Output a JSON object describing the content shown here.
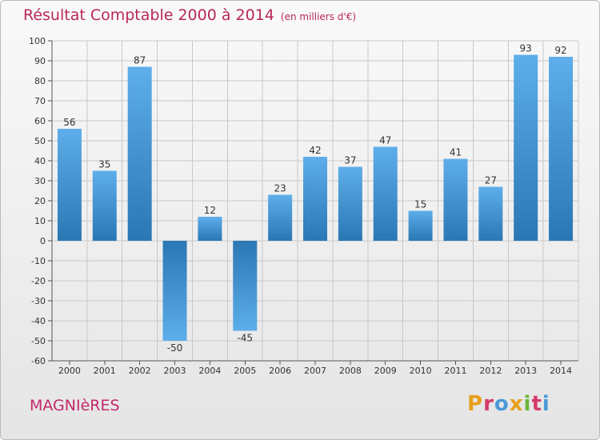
{
  "header": {
    "title": "Résultat Comptable 2000 à 2014",
    "subtitle": "(en milliers d'€)"
  },
  "footer": {
    "town": "MAGNIèRES",
    "brand_letters": [
      "P",
      "r",
      "o",
      "x",
      "i",
      "t",
      "i"
    ],
    "brand_colors": [
      "#e8a01c",
      "#d43a6a",
      "#4a9ad8",
      "#e8a01c",
      "#6ab63c",
      "#d43a6a",
      "#4a9ad8"
    ]
  },
  "chart_data": {
    "type": "bar",
    "title": "Résultat Comptable 2000 à 2014",
    "subtitle": "(en milliers d'€)",
    "xlabel": "",
    "ylabel": "",
    "categories": [
      "2000",
      "2001",
      "2002",
      "2003",
      "2004",
      "2005",
      "2006",
      "2007",
      "2008",
      "2009",
      "2010",
      "2011",
      "2012",
      "2013",
      "2014"
    ],
    "values": [
      56,
      35,
      87,
      -50,
      12,
      -45,
      23,
      42,
      37,
      47,
      15,
      41,
      27,
      93,
      92
    ],
    "ylim": [
      -60,
      100
    ],
    "yticks": [
      100,
      90,
      80,
      70,
      60,
      50,
      40,
      30,
      20,
      10,
      0,
      -10,
      -20,
      -30,
      -40,
      -50,
      -60
    ],
    "grid": true,
    "colors": {
      "bar_light": "#5daeea",
      "bar_dark": "#2a77b4",
      "grid": "#c8c8c8",
      "axis": "#555555"
    }
  }
}
